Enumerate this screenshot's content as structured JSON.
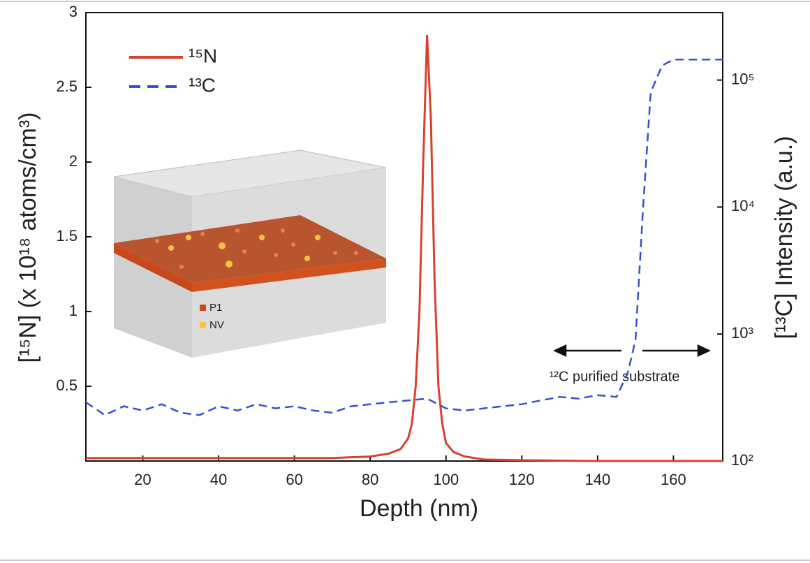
{
  "chart_data": {
    "type": "line",
    "x_label": "Depth (nm)",
    "y_label": "[¹⁵N]  (x 10¹⁸ atoms/cm³)",
    "y2_label": "[¹³C] Intensity (a.u.)",
    "xlim": [
      5,
      173
    ],
    "xticks": [
      20,
      40,
      60,
      80,
      100,
      120,
      140,
      160
    ],
    "ylim": [
      0,
      3
    ],
    "yticks": [
      0.5,
      1,
      1.5,
      2,
      2.5,
      3
    ],
    "y2lim": [
      100,
      340000
    ],
    "y2_log": true,
    "y2ticks": [
      {
        "value": 100,
        "label": "10²"
      },
      {
        "value": 1000,
        "label": "10³"
      },
      {
        "value": 10000,
        "label": "10⁴"
      },
      {
        "value": 100000,
        "label": "10⁵"
      }
    ],
    "legend": "upper left",
    "series": [
      {
        "name": "¹⁵N",
        "color": "#d8412e",
        "dash": false,
        "x": [
          5,
          20,
          40,
          60,
          70,
          80,
          85,
          88,
          90,
          91,
          92,
          93,
          94,
          95,
          96,
          97,
          98,
          99,
          100,
          102,
          105,
          110,
          120,
          140,
          160,
          173
        ],
        "values": [
          0.02,
          0.02,
          0.02,
          0.02,
          0.02,
          0.03,
          0.05,
          0.08,
          0.15,
          0.25,
          0.5,
          1.0,
          2.0,
          2.85,
          2.3,
          1.2,
          0.5,
          0.25,
          0.12,
          0.06,
          0.03,
          0.01,
          0.005,
          0,
          0,
          0
        ]
      },
      {
        "name": "¹³C",
        "color": "#3b4fd0",
        "dash": true,
        "axis": "y2",
        "x": [
          5,
          10,
          15,
          20,
          25,
          30,
          35,
          40,
          45,
          50,
          55,
          60,
          65,
          70,
          75,
          80,
          85,
          90,
          95,
          100,
          105,
          110,
          115,
          120,
          125,
          130,
          135,
          140,
          145,
          148,
          150,
          152,
          154,
          157,
          160,
          173
        ],
        "values": [
          290,
          230,
          270,
          250,
          280,
          240,
          230,
          270,
          250,
          280,
          260,
          270,
          250,
          240,
          270,
          280,
          290,
          300,
          310,
          260,
          250,
          260,
          270,
          280,
          300,
          320,
          310,
          330,
          320,
          500,
          900,
          10000,
          80000,
          130000,
          145000,
          145000
        ]
      }
    ],
    "annotation": "¹²C purified  substrate",
    "inset_labels": [
      "P1",
      "NV"
    ]
  }
}
